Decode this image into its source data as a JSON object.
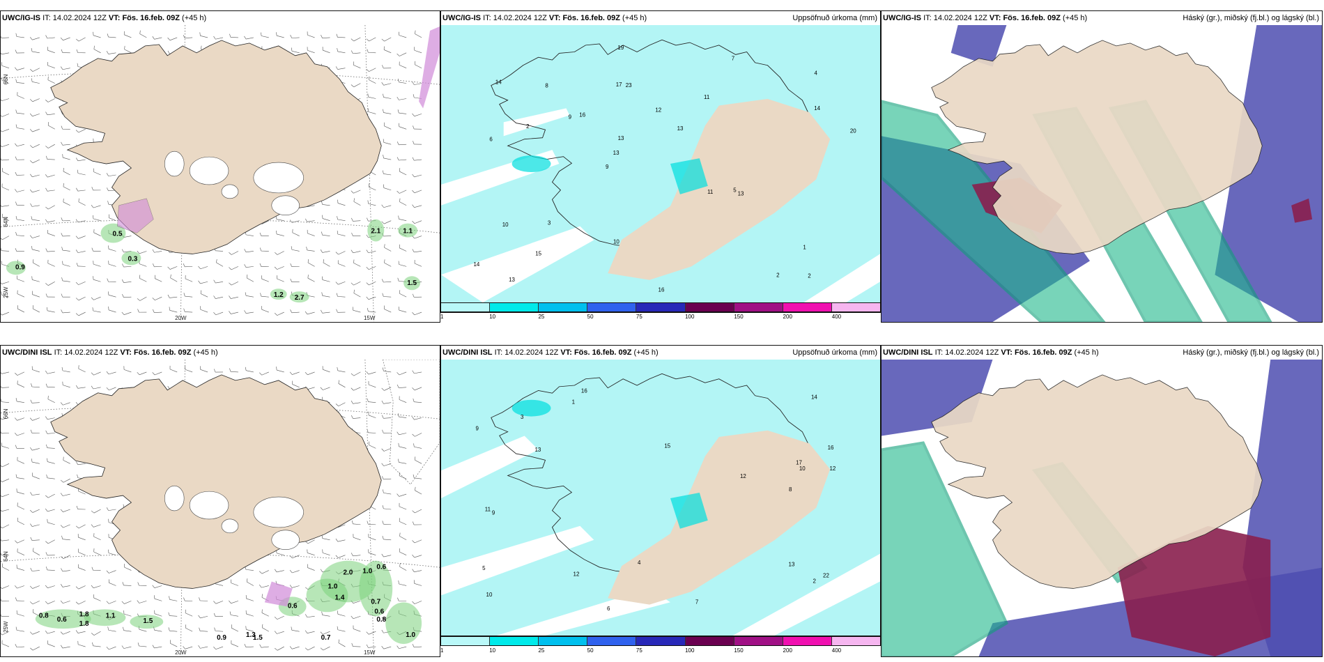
{
  "rows": [
    {
      "model": "UWC/IG-IS",
      "wind_values": [
        "0.9",
        "0.5",
        "0.3",
        "2.1",
        "1.1",
        "1.5",
        "1.2",
        "2.7"
      ],
      "precip_values": [
        "2",
        "6",
        "4",
        "9",
        "11",
        "13",
        "17",
        "12",
        "10",
        "16",
        "14",
        "15",
        "23",
        "13",
        "13",
        "14",
        "19",
        "20",
        "11",
        "14",
        "13",
        "10",
        "13",
        "8",
        "7",
        "3",
        "2",
        "1",
        "5",
        "16",
        "9",
        "2"
      ]
    },
    {
      "model": "UWC/DINI ISL",
      "wind_values": [
        "0.8",
        "0.6",
        "1.8",
        "1.1",
        "1.5",
        "2.0",
        "1.0",
        "0.6",
        "1.0",
        "1.4",
        "0.6",
        "0.7",
        "0.6",
        "0.8",
        "1.8",
        "1.0",
        "0.9",
        "0.7",
        "1.3",
        "1.5"
      ],
      "precip_values": [
        "13",
        "16",
        "22",
        "15",
        "10",
        "16",
        "17",
        "12",
        "14",
        "13",
        "12",
        "9",
        "8",
        "6",
        "5",
        "3",
        "2",
        "1",
        "4",
        "10",
        "11",
        "9",
        "7",
        "12"
      ]
    }
  ],
  "labels": {
    "it": "IT:",
    "it_value": "14.02.2024 12Z",
    "vt": "VT:",
    "vt_value": "Fös. 16.feb. 09Z",
    "lead": "(+45 h)",
    "precip_title": "Uppsöfnuð úrkoma (mm)",
    "cloud_title": "Háský (gr.), miðský (fj.bl.) og lágský (bl.)",
    "lat_66": "66N",
    "lat_64": "64N",
    "lon_20": "20W",
    "lon_15": "15W",
    "lon_25": "25W"
  },
  "legend": {
    "ticks": [
      "1",
      "10",
      "25",
      "50",
      "75",
      "100",
      "150",
      "200",
      "400"
    ],
    "colors": [
      "#b9f8f8",
      "#00eaea",
      "#00c0ee",
      "#3062ee",
      "#2828b8",
      "#6a0050",
      "#a01085",
      "#f010b0",
      "#f6b6f0"
    ]
  },
  "colors": {
    "land": "#ead9c5",
    "precip_light": "#b3f5f5",
    "cloud_high": "#1fb88c",
    "cloud_mid": "#4d4db0",
    "cloud_low": "#8a1f4e"
  }
}
